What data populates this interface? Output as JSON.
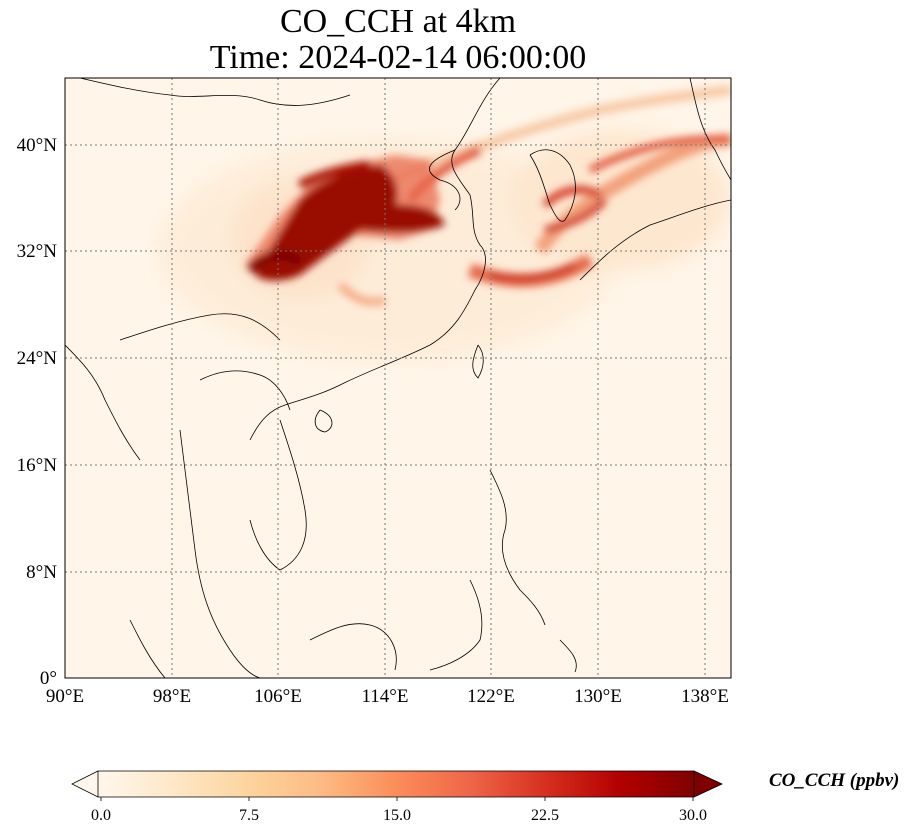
{
  "title": {
    "line1": "CO_CCH at 4km",
    "line2": "Time: 2024-02-14 06:00:00"
  },
  "axes": {
    "lon_ticks": [
      "90°E",
      "98°E",
      "106°E",
      "114°E",
      "122°E",
      "130°E",
      "138°E"
    ],
    "lat_ticks": [
      "0°",
      "8°N",
      "16°N",
      "24°N",
      "32°N",
      "40°N"
    ],
    "lon_range": [
      90,
      139
    ],
    "lat_range": [
      0,
      45
    ],
    "gridlines": "dotted"
  },
  "colorbar": {
    "label": "CO_CCH (ppbv)",
    "ticks": [
      "0.0",
      "7.5",
      "15.0",
      "22.5",
      "30.0"
    ],
    "min": 0,
    "max": 30,
    "extend": "both",
    "colormap": "OrRd",
    "colors": [
      "#fff7ec",
      "#fee8c8",
      "#fdd49e",
      "#fdbb84",
      "#fc8d59",
      "#ef6548",
      "#d7301f",
      "#b30000",
      "#7f0000"
    ]
  },
  "map_features": {
    "background_color": "#fff5e8",
    "plumes": [
      {
        "region": "central China",
        "level": "max"
      },
      {
        "region": "Yellow Sea / Korea",
        "level": "high"
      },
      {
        "region": "Sea of Japan band",
        "level": "medium"
      }
    ]
  }
}
